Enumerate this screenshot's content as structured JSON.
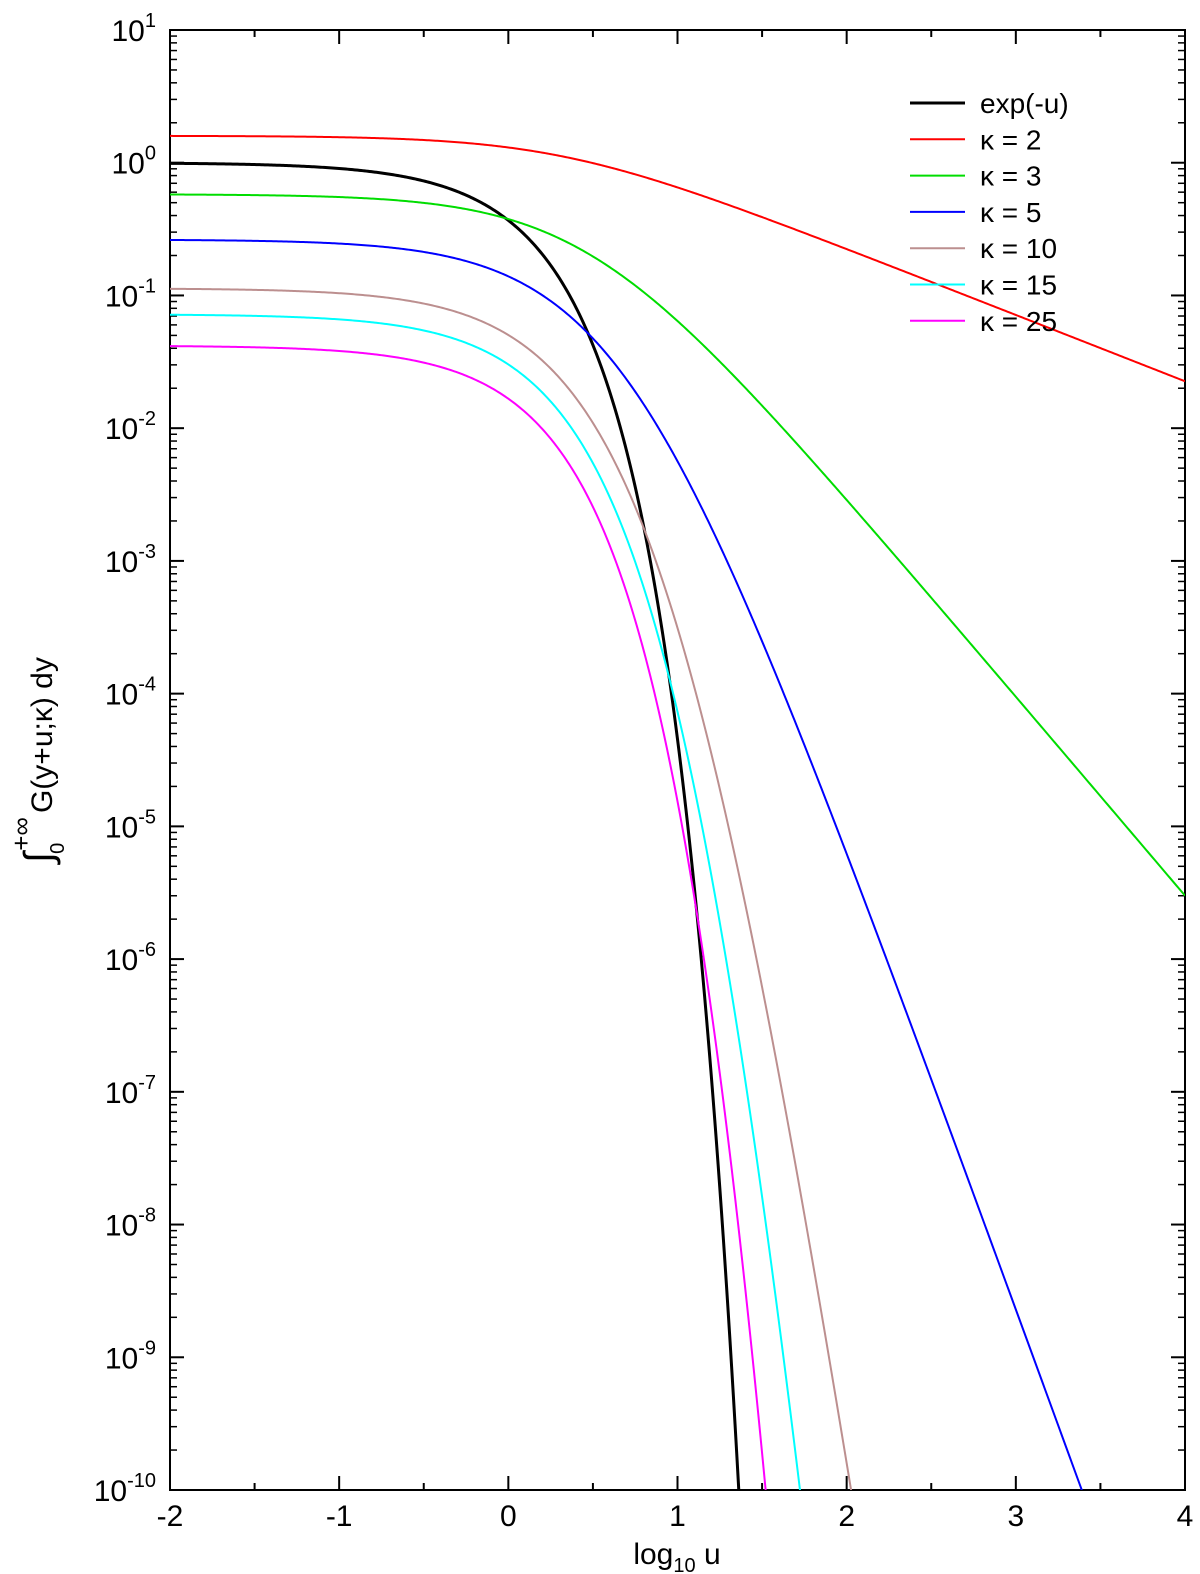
{
  "chart_data": {
    "type": "line",
    "xlabel": "log",
    "xlabel_sub": "10",
    "xlabel_var": " u",
    "ylabel_integral": "∫",
    "ylabel_lower": "0",
    "ylabel_upper": "+∞",
    "ylabel_integrand": "G(y+u;κ) dy",
    "xlim": [
      -2,
      4
    ],
    "ylim": [
      1e-10,
      10
    ],
    "yscale": "log",
    "x_ticks": [
      "-2",
      "-1",
      "0",
      "1",
      "2",
      "3",
      "4"
    ],
    "y_ticks": [
      {
        "base": "10",
        "exp": "1"
      },
      {
        "base": "10",
        "exp": "0"
      },
      {
        "base": "10",
        "exp": "-1"
      },
      {
        "base": "10",
        "exp": "-2"
      },
      {
        "base": "10",
        "exp": "-3"
      },
      {
        "base": "10",
        "exp": "-4"
      },
      {
        "base": "10",
        "exp": "-5"
      },
      {
        "base": "10",
        "exp": "-6"
      },
      {
        "base": "10",
        "exp": "-7"
      },
      {
        "base": "10",
        "exp": "-8"
      },
      {
        "base": "10",
        "exp": "-9"
      },
      {
        "base": "10",
        "exp": "-10"
      }
    ],
    "legend_position": "top-right",
    "series": [
      {
        "name": "exp(-u)",
        "color": "#000000",
        "kappa": null
      },
      {
        "name": "κ = 2",
        "color": "#ff0000",
        "kappa": 2
      },
      {
        "name": "κ = 3",
        "color": "#00dd00",
        "kappa": 3
      },
      {
        "name": "κ = 5",
        "color": "#0000ff",
        "kappa": 5
      },
      {
        "name": "κ = 10",
        "color": "#bc8f8f",
        "kappa": 10
      },
      {
        "name": "κ = 15",
        "color": "#00ffff",
        "kappa": 15
      },
      {
        "name": "κ = 25",
        "color": "#ff00ff",
        "kappa": 25
      }
    ]
  }
}
